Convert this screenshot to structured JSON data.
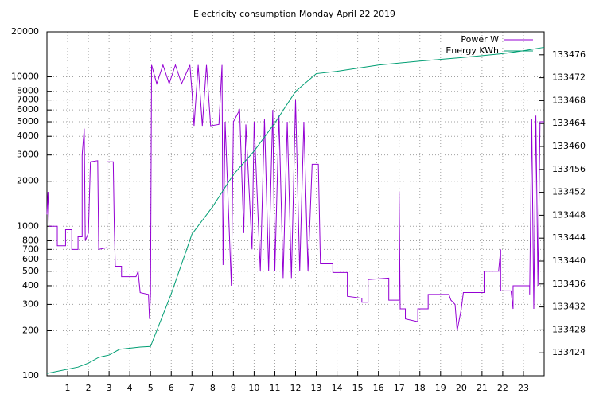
{
  "chart_data": {
    "type": "line",
    "title": "Electricity consumption Monday April 22 2019",
    "xlim": [
      0,
      24
    ],
    "xticks": [
      1,
      2,
      3,
      4,
      5,
      6,
      7,
      8,
      9,
      10,
      11,
      12,
      13,
      14,
      15,
      16,
      17,
      18,
      19,
      20,
      21,
      22,
      23
    ],
    "ylim": [
      100,
      20000
    ],
    "log_y": true,
    "yticks": [
      100,
      200,
      300,
      400,
      500,
      600,
      700,
      800,
      1000,
      2000,
      3000,
      4000,
      5000,
      6000,
      7000,
      8000,
      10000,
      20000
    ],
    "y2lim": [
      133420,
      133480
    ],
    "y2ticks": [
      133424,
      133428,
      133432,
      133436,
      133440,
      133444,
      133448,
      133452,
      133456,
      133460,
      133464,
      133468,
      133472,
      133476
    ],
    "grid": true,
    "legend": "top-right",
    "series": [
      {
        "name": "Power W",
        "color": "#9400d3",
        "x": [
          0,
          0.05,
          0.1,
          0.5,
          0.5,
          0.9,
          0.9,
          1.2,
          1.2,
          1.5,
          1.5,
          1.7,
          1.7,
          1.8,
          1.85,
          2.0,
          2.1,
          2.45,
          2.5,
          2.9,
          2.9,
          3.2,
          3.25,
          3.3,
          3.6,
          3.6,
          4.3,
          4.4,
          4.5,
          4.9,
          4.95,
          5.0,
          5.05,
          5.3,
          5.6,
          5.9,
          6.2,
          6.5,
          6.9,
          7.0,
          7.1,
          7.3,
          7.5,
          7.7,
          7.9,
          8.3,
          8.45,
          8.5,
          8.6,
          8.9,
          9.0,
          9.3,
          9.5,
          9.6,
          9.9,
          10.0,
          10.3,
          10.5,
          10.7,
          10.9,
          11.0,
          11.2,
          11.4,
          11.6,
          11.8,
          12.0,
          12.2,
          12.4,
          12.6,
          12.8,
          13.1,
          13.2,
          13.8,
          13.8,
          14.5,
          14.5,
          15.2,
          15.2,
          15.5,
          15.5,
          16.5,
          16.5,
          17.0,
          17.0,
          17.05,
          17.3,
          17.3,
          17.9,
          17.9,
          18.4,
          18.4,
          19.4,
          19.5,
          19.7,
          19.8,
          20.0,
          20.1,
          21.1,
          21.1,
          21.8,
          21.9,
          21.9,
          22.4,
          22.5,
          22.5,
          23.3,
          23.3,
          23.4,
          23.5,
          23.6,
          23.7,
          23.8,
          24
        ],
        "values": [
          1200,
          1700,
          1000,
          1000,
          740,
          740,
          950,
          950,
          700,
          700,
          850,
          850,
          3000,
          4500,
          800,
          900,
          2700,
          2750,
          700,
          720,
          2700,
          2700,
          1000,
          540,
          540,
          460,
          460,
          500,
          360,
          350,
          240,
          350,
          12000,
          9000,
          12000,
          9000,
          12000,
          9000,
          12000,
          8000,
          4700,
          12000,
          4700,
          12000,
          4700,
          4800,
          12000,
          550,
          5000,
          400,
          5000,
          6000,
          900,
          4800,
          700,
          5000,
          500,
          5200,
          500,
          6000,
          500,
          5500,
          450,
          5000,
          450,
          7000,
          500,
          5000,
          500,
          2600,
          2600,
          560,
          560,
          490,
          490,
          340,
          330,
          310,
          310,
          440,
          450,
          320,
          320,
          1700,
          280,
          280,
          240,
          230,
          280,
          280,
          350,
          350,
          320,
          300,
          200,
          280,
          360,
          360,
          500,
          500,
          700,
          370,
          370,
          280,
          400,
          400,
          350,
          5200,
          280,
          5500,
          400,
          5000,
          5000
        ]
      },
      {
        "name": "Energy KWh",
        "color": "#009e73",
        "axis": "y2",
        "x": [
          0,
          1.5,
          2,
          2.5,
          3,
          3.5,
          4.5,
          5,
          6,
          7,
          8,
          9,
          10,
          11,
          12,
          13,
          14,
          16,
          18,
          20,
          22,
          23,
          24
        ],
        "values": [
          133420.4,
          133421.5,
          133422.2,
          133423.2,
          133423.6,
          133424.6,
          133425.0,
          133425.1,
          133434.3,
          133444.7,
          133449.5,
          133455.1,
          133459.2,
          133464.1,
          133469.6,
          133472.7,
          133473.1,
          133474.2,
          133474.9,
          133475.5,
          133476.2,
          133476.7,
          133477.3
        ]
      }
    ]
  }
}
